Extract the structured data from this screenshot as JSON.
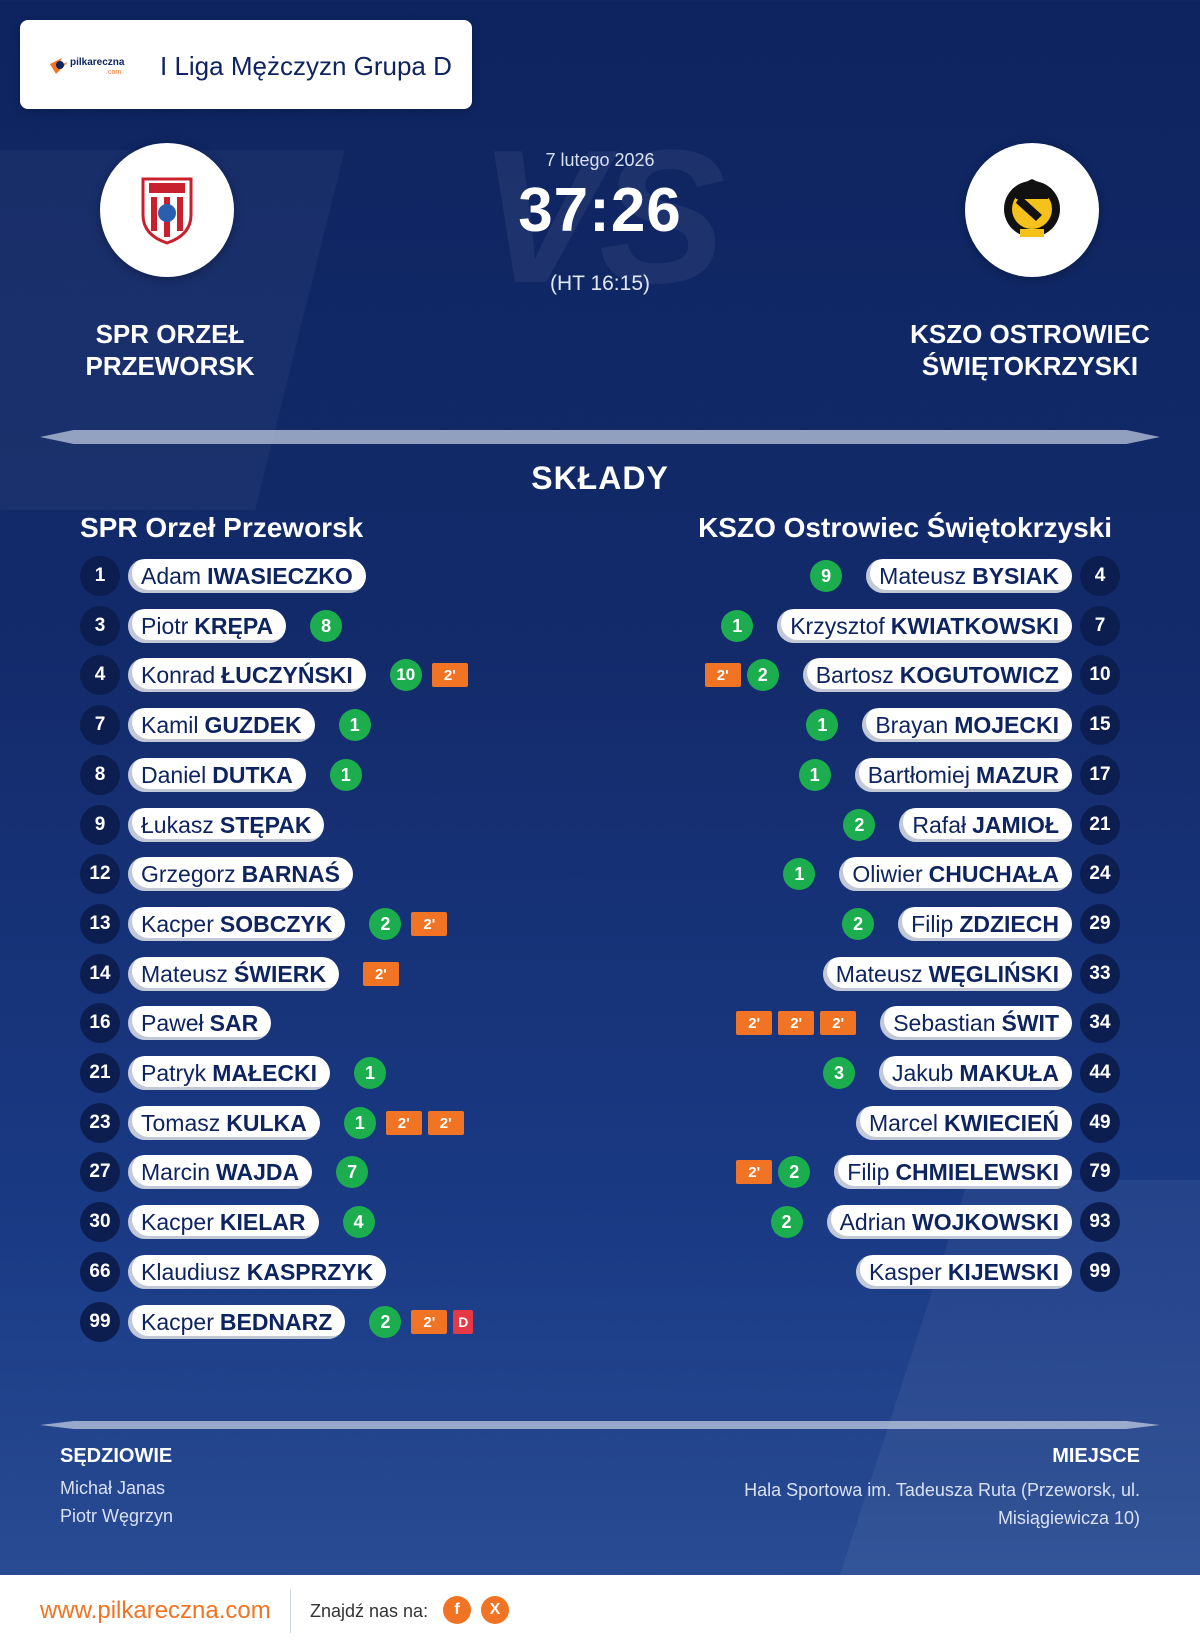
{
  "header": {
    "league": "I Liga Mężczyzn Grupa D"
  },
  "match": {
    "date": "7 lutego 2026",
    "score": "37:26",
    "halftime": "(HT 16:15)"
  },
  "home_team": {
    "name_line1": "SPR ORZEŁ",
    "name_line2": "PRZEWORSK",
    "squad_name": "SPR Orzeł Przeworsk",
    "players": [
      {
        "no": "1",
        "first": "Adam",
        "last": "IWASIECZKO",
        "goals": "",
        "s2": 0,
        "red": false
      },
      {
        "no": "3",
        "first": "Piotr",
        "last": "KRĘPA",
        "goals": "8",
        "s2": 0,
        "red": false
      },
      {
        "no": "4",
        "first": "Konrad",
        "last": "ŁUCZYŃSKI",
        "goals": "10",
        "s2": 1,
        "red": false
      },
      {
        "no": "7",
        "first": "Kamil",
        "last": "GUZDEK",
        "goals": "1",
        "s2": 0,
        "red": false
      },
      {
        "no": "8",
        "first": "Daniel",
        "last": "DUTKA",
        "goals": "1",
        "s2": 0,
        "red": false
      },
      {
        "no": "9",
        "first": "Łukasz",
        "last": "STĘPAK",
        "goals": "",
        "s2": 0,
        "red": false
      },
      {
        "no": "12",
        "first": "Grzegorz",
        "last": "BARNAŚ",
        "goals": "",
        "s2": 0,
        "red": false
      },
      {
        "no": "13",
        "first": "Kacper",
        "last": "SOBCZYK",
        "goals": "2",
        "s2": 1,
        "red": false
      },
      {
        "no": "14",
        "first": "Mateusz",
        "last": "ŚWIERK",
        "goals": "",
        "s2": 1,
        "red": false
      },
      {
        "no": "16",
        "first": "Paweł",
        "last": "SAR",
        "goals": "",
        "s2": 0,
        "red": false
      },
      {
        "no": "21",
        "first": "Patryk",
        "last": "MAŁECKI",
        "goals": "1",
        "s2": 0,
        "red": false
      },
      {
        "no": "23",
        "first": "Tomasz",
        "last": "KULKA",
        "goals": "1",
        "s2": 2,
        "red": false
      },
      {
        "no": "27",
        "first": "Marcin",
        "last": "WAJDA",
        "goals": "7",
        "s2": 0,
        "red": false
      },
      {
        "no": "30",
        "first": "Kacper",
        "last": "KIELAR",
        "goals": "4",
        "s2": 0,
        "red": false
      },
      {
        "no": "66",
        "first": "Klaudiusz",
        "last": "KASPRZYK",
        "goals": "",
        "s2": 0,
        "red": false
      },
      {
        "no": "99",
        "first": "Kacper",
        "last": "BEDNARZ",
        "goals": "2",
        "s2": 1,
        "red": true
      }
    ]
  },
  "away_team": {
    "name_line1": "KSZO OSTROWIEC",
    "name_line2": "ŚWIĘTOKRZYSKI",
    "squad_name": "KSZO Ostrowiec Świętokrzyski",
    "players": [
      {
        "no": "4",
        "first": "Mateusz",
        "last": "BYSIAK",
        "goals": "9",
        "s2": 0,
        "red": false
      },
      {
        "no": "7",
        "first": "Krzysztof",
        "last": "KWIATKOWSKI",
        "goals": "1",
        "s2": 0,
        "red": false
      },
      {
        "no": "10",
        "first": "Bartosz",
        "last": "KOGUTOWICZ",
        "goals": "2",
        "s2": 1,
        "red": false
      },
      {
        "no": "15",
        "first": "Brayan",
        "last": "MOJECKI",
        "goals": "1",
        "s2": 0,
        "red": false
      },
      {
        "no": "17",
        "first": "Bartłomiej",
        "last": "MAZUR",
        "goals": "1",
        "s2": 0,
        "red": false
      },
      {
        "no": "21",
        "first": "Rafał",
        "last": "JAMIOŁ",
        "goals": "2",
        "s2": 0,
        "red": false
      },
      {
        "no": "24",
        "first": "Oliwier",
        "last": "CHUCHAŁA",
        "goals": "1",
        "s2": 0,
        "red": false
      },
      {
        "no": "29",
        "first": "Filip",
        "last": "ZDZIECH",
        "goals": "2",
        "s2": 0,
        "red": false
      },
      {
        "no": "33",
        "first": "Mateusz",
        "last": "WĘGLIŃSKI",
        "goals": "",
        "s2": 0,
        "red": false
      },
      {
        "no": "34",
        "first": "Sebastian",
        "last": "ŚWIT",
        "goals": "",
        "s2": 3,
        "red": false
      },
      {
        "no": "44",
        "first": "Jakub",
        "last": "MAKUŁA",
        "goals": "3",
        "s2": 0,
        "red": false
      },
      {
        "no": "49",
        "first": "Marcel",
        "last": "KWIECIEŃ",
        "goals": "",
        "s2": 0,
        "red": false
      },
      {
        "no": "79",
        "first": "Filip",
        "last": "CHMIELEWSKI",
        "goals": "2",
        "s2": 1,
        "red": false
      },
      {
        "no": "93",
        "first": "Adrian",
        "last": "WOJKOWSKI",
        "goals": "2",
        "s2": 0,
        "red": false
      },
      {
        "no": "99",
        "first": "Kasper",
        "last": "KIJEWSKI",
        "goals": "",
        "s2": 0,
        "red": false
      }
    ]
  },
  "labels": {
    "lineups": "SKŁADY",
    "suspension": "2'",
    "red_card": "D",
    "referees_title": "SĘDZIOWIE",
    "venue_title": "MIEJSCE"
  },
  "referees": [
    "Michał Janas",
    "Piotr Węgrzyn"
  ],
  "venue": "Hala Sportowa im. Tadeusza Ruta (Przeworsk, ul. Misiągiewicza 10)",
  "footer": {
    "url": "www.pilkareczna.com",
    "find_us": "Znajdź nas na:",
    "facebook": "f",
    "x": "X"
  },
  "colors": {
    "accent": "#f07423",
    "goal": "#1cae4e",
    "red_card": "#e53946",
    "navy": "#0e2460"
  }
}
